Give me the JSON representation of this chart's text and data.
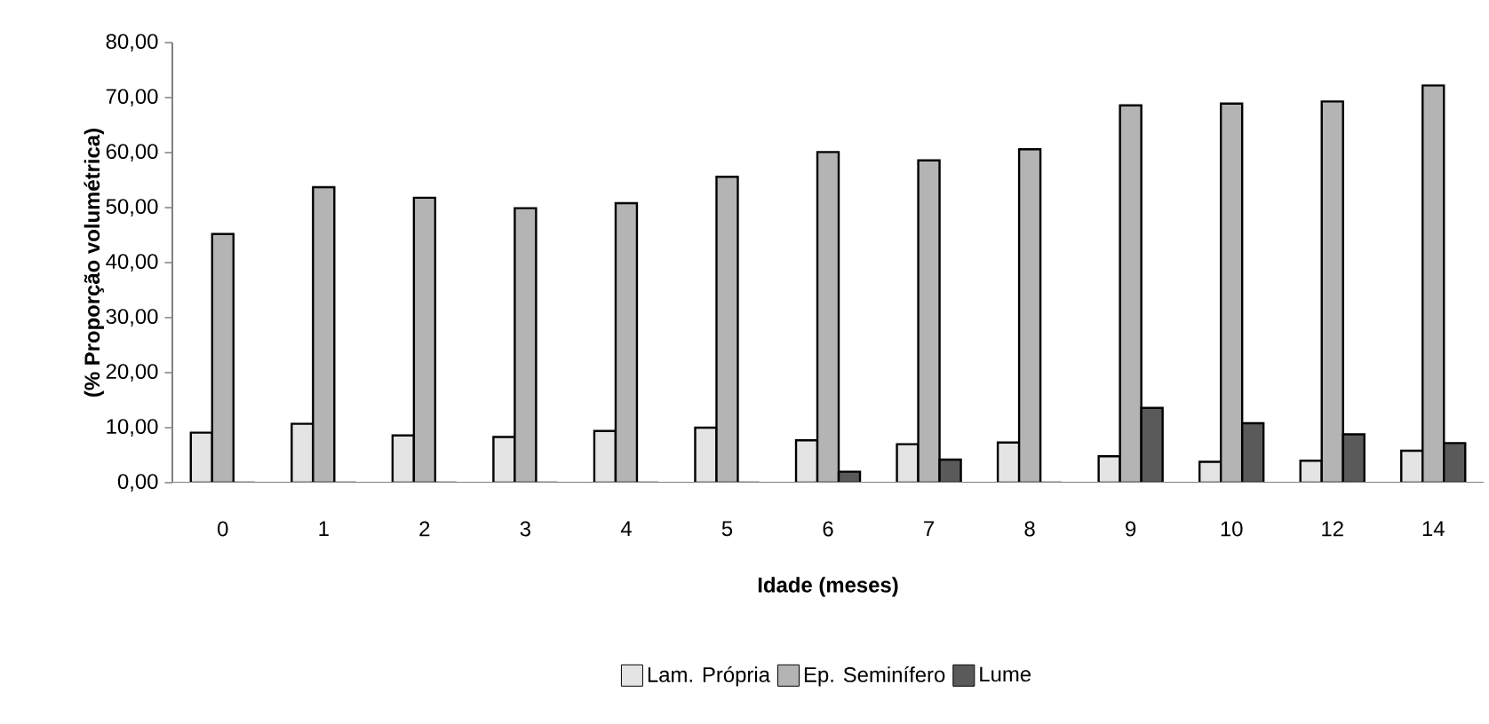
{
  "chart_data": {
    "type": "bar",
    "xlabel": "Idade (meses)",
    "ylabel": "(% Proporção volumétrica)",
    "categories": [
      "0",
      "1",
      "2",
      "3",
      "4",
      "5",
      "6",
      "7",
      "8",
      "9",
      "10",
      "12",
      "14"
    ],
    "series": [
      {
        "name": "Lam. Própria",
        "color": "#e4e4e4",
        "values": [
          9.1,
          10.7,
          8.6,
          8.3,
          9.4,
          10.0,
          7.7,
          7.0,
          7.3,
          4.8,
          3.8,
          4.0,
          5.8
        ]
      },
      {
        "name": "Ep. Seminífero",
        "color": "#b4b4b4",
        "values": [
          45.2,
          53.7,
          51.8,
          49.9,
          50.8,
          55.6,
          60.1,
          58.6,
          60.6,
          68.6,
          68.9,
          69.3,
          72.2
        ]
      },
      {
        "name": "Lume",
        "color": "#5a5a5a",
        "values": [
          0,
          0,
          0,
          0,
          0,
          0,
          2.0,
          4.2,
          0,
          13.6,
          10.8,
          8.8,
          7.2
        ]
      }
    ],
    "ylim": [
      0,
      80
    ],
    "yticks": [
      {
        "value": 0,
        "label": "0,00"
      },
      {
        "value": 10,
        "label": "10,00"
      },
      {
        "value": 20,
        "label": "20,00"
      },
      {
        "value": 30,
        "label": "30,00"
      },
      {
        "value": 40,
        "label": "40,00"
      },
      {
        "value": 50,
        "label": "50,00"
      },
      {
        "value": 60,
        "label": "60,00"
      },
      {
        "value": 70,
        "label": "70,00"
      },
      {
        "value": 80,
        "label": "80,00"
      }
    ],
    "grid": false,
    "legend": "bottom"
  }
}
